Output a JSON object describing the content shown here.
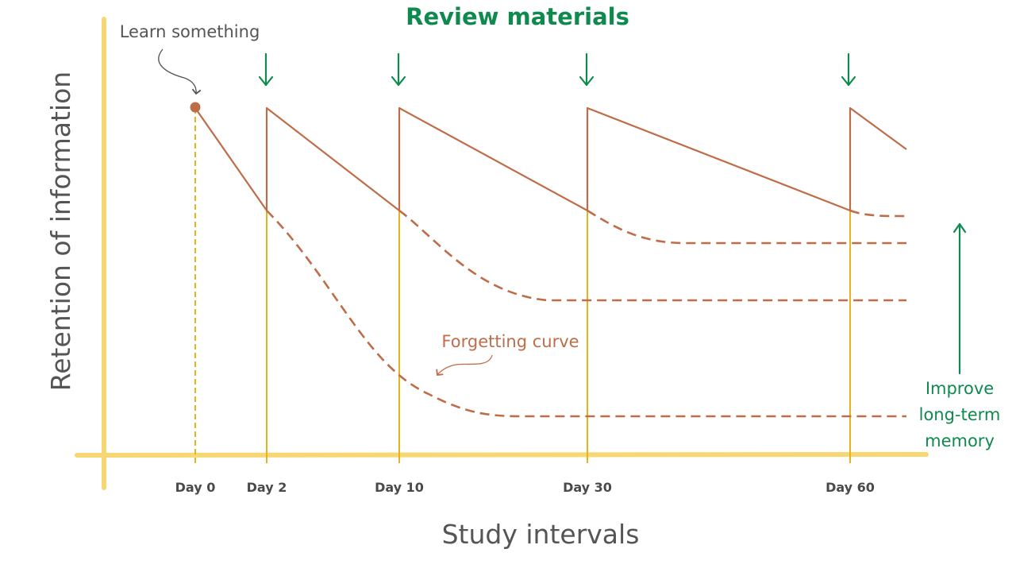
{
  "title": "Review materials",
  "x_axis_title": "Study intervals",
  "y_axis_title": "Retention of information",
  "annotations": {
    "learn": "Learn something",
    "forgetting": "Forgetting curve",
    "improve": [
      "Improve",
      "long-term",
      "memory"
    ]
  },
  "days": [
    "Day 0",
    "Day 2",
    "Day 10",
    "Day 30",
    "Day 60"
  ],
  "colors": {
    "axis": "#f7d774",
    "gridline": "#e8b21c",
    "curve": "#bf6d48",
    "title": "#0e8a4e",
    "gray_text": "#555555",
    "tick_text": "#4a4a4a"
  },
  "icons": {
    "review_arrow": "down-arrow-icon",
    "improve_arrow": "up-arrow-icon"
  }
}
